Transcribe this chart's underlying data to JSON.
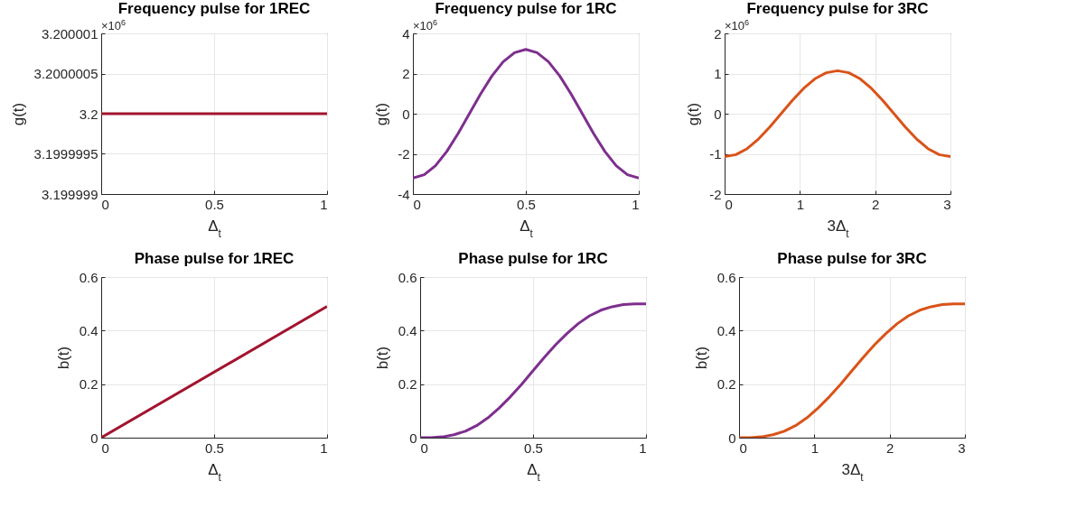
{
  "chart_data": [
    {
      "type": "line",
      "title": "Frequency pulse for 1REC",
      "xlabel": "Δ$_{t}$",
      "ylabel": "g(t)",
      "annotations": [
        "×10$^{6}$"
      ],
      "grid": true,
      "xlim": [
        0,
        1
      ],
      "xticks": [
        0,
        0.5,
        1
      ],
      "ylim": [
        3.199999,
        3.200001
      ],
      "yticks": [
        3.199999,
        3.1999995,
        3.2,
        3.2000005,
        3.200001
      ],
      "series": [
        {
          "color": "#a2142f",
          "x": [
            0,
            1
          ],
          "values": [
            3.2,
            3.2
          ]
        }
      ]
    },
    {
      "type": "line",
      "title": "Frequency pulse for 1RC",
      "xlabel": "Δ$_{t}$",
      "ylabel": "g(t)",
      "annotations": [
        "×10$^{6}$"
      ],
      "grid": true,
      "xlim": [
        0,
        1
      ],
      "xticks": [
        0,
        0.5,
        1
      ],
      "ylim": [
        -4,
        4
      ],
      "yticks": [
        -4,
        -2,
        0,
        2,
        4
      ],
      "series": [
        {
          "color": "#7e2f8e",
          "x": [
            0,
            0.05,
            0.1,
            0.15,
            0.2,
            0.25,
            0.3,
            0.35,
            0.4,
            0.45,
            0.5,
            0.55,
            0.6,
            0.65,
            0.7,
            0.75,
            0.8,
            0.85,
            0.9,
            0.95,
            1
          ],
          "values": [
            -3.2,
            -3.04,
            -2.59,
            -1.88,
            -0.99,
            0,
            0.99,
            1.88,
            2.59,
            3.04,
            3.2,
            3.04,
            2.59,
            1.88,
            0.99,
            0,
            -0.99,
            -1.88,
            -2.59,
            -3.04,
            -3.2
          ]
        }
      ]
    },
    {
      "type": "line",
      "title": "Frequency pulse for 3RC",
      "xlabel": "3Δ$_{t}$",
      "ylabel": "g(t)",
      "annotations": [
        "×10$^{6}$"
      ],
      "grid": true,
      "xlim": [
        0,
        3
      ],
      "xticks": [
        0,
        1,
        2,
        3
      ],
      "ylim": [
        -2,
        2
      ],
      "yticks": [
        -2,
        -1,
        0,
        1,
        2
      ],
      "series": [
        {
          "color": "#d95319",
          "x": [
            0,
            0.15,
            0.3,
            0.45,
            0.6,
            0.75,
            0.9,
            1.05,
            1.2,
            1.35,
            1.5,
            1.65,
            1.8,
            1.95,
            2.1,
            2.25,
            2.4,
            2.55,
            2.7,
            2.85,
            3
          ],
          "values": [
            -1.07,
            -1.02,
            -0.87,
            -0.63,
            -0.33,
            0,
            0.33,
            0.63,
            0.87,
            1.02,
            1.07,
            1.02,
            0.87,
            0.63,
            0.33,
            0,
            -0.33,
            -0.63,
            -0.87,
            -1.02,
            -1.07
          ]
        }
      ]
    },
    {
      "type": "line",
      "title": "Phase pulse for 1REC",
      "xlabel": "Δ$_{t}$",
      "ylabel": "b(t)",
      "grid": true,
      "xlim": [
        0,
        1
      ],
      "xticks": [
        0,
        0.5,
        1
      ],
      "ylim": [
        0,
        0.6
      ],
      "yticks": [
        0,
        0.2,
        0.4,
        0.6
      ],
      "series": [
        {
          "color": "#a2142f",
          "x": [
            0,
            1
          ],
          "values": [
            0,
            0.49
          ]
        }
      ]
    },
    {
      "type": "line",
      "title": "Phase pulse for 1RC",
      "xlabel": "Δ$_{t}$",
      "ylabel": "b(t)",
      "grid": true,
      "xlim": [
        0,
        1
      ],
      "xticks": [
        0,
        0.5,
        1
      ],
      "ylim": [
        0,
        0.6
      ],
      "yticks": [
        0,
        0.2,
        0.4,
        0.6
      ],
      "series": [
        {
          "color": "#7e2f8e",
          "x": [
            0,
            0.05,
            0.1,
            0.15,
            0.2,
            0.25,
            0.3,
            0.35,
            0.4,
            0.45,
            0.5,
            0.55,
            0.6,
            0.65,
            0.7,
            0.75,
            0.8,
            0.85,
            0.9,
            0.95,
            1
          ],
          "values": [
            0,
            0,
            0.003,
            0.011,
            0.024,
            0.045,
            0.074,
            0.111,
            0.153,
            0.2,
            0.25,
            0.3,
            0.347,
            0.389,
            0.426,
            0.455,
            0.476,
            0.489,
            0.497,
            0.5,
            0.5
          ]
        }
      ]
    },
    {
      "type": "line",
      "title": "Phase pulse for 3RC",
      "xlabel": "3Δ$_{t}$",
      "ylabel": "b(t)",
      "grid": true,
      "xlim": [
        0,
        3
      ],
      "xticks": [
        0,
        1,
        2,
        3
      ],
      "ylim": [
        0,
        0.6
      ],
      "yticks": [
        0,
        0.2,
        0.4,
        0.6
      ],
      "series": [
        {
          "color": "#d95319",
          "x": [
            0,
            0.15,
            0.3,
            0.45,
            0.6,
            0.75,
            0.9,
            1.05,
            1.2,
            1.35,
            1.5,
            1.65,
            1.8,
            1.95,
            2.1,
            2.25,
            2.4,
            2.55,
            2.7,
            2.85,
            3
          ],
          "values": [
            0,
            0,
            0.003,
            0.011,
            0.024,
            0.045,
            0.074,
            0.111,
            0.153,
            0.2,
            0.25,
            0.3,
            0.347,
            0.389,
            0.426,
            0.455,
            0.476,
            0.489,
            0.497,
            0.5,
            0.5
          ]
        }
      ]
    }
  ]
}
